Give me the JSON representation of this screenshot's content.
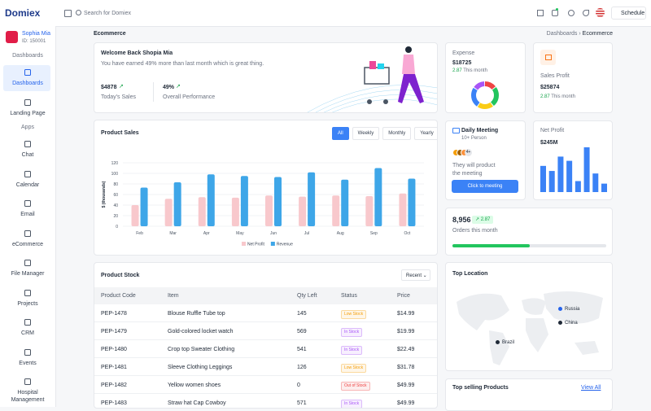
{
  "header": {
    "logo": "Domiex",
    "search": "Search for Domiex",
    "schedule": "Schedule"
  },
  "sidebar": {
    "user": {
      "name": "Sophia Mia",
      "id": "ID: 150001"
    },
    "groups": [
      {
        "title": "Dashboards",
        "items": [
          "Dashboards",
          "Landing Page"
        ]
      },
      {
        "title": "Apps",
        "items": [
          "Chat",
          "Calendar",
          "Email",
          "eCommerce",
          "File Manager",
          "Projects",
          "CRM",
          "Events",
          "Hospital Management"
        ]
      }
    ]
  },
  "breadcrumb": {
    "page": "Ecommerce",
    "trail": [
      "Dashboards",
      "Ecommerce"
    ]
  },
  "welcome": {
    "title": "Welcome Back Shopia Mia",
    "text": "You have earned 49% more than last month which is great thing.",
    "stats": [
      {
        "value": "$4878",
        "label": "Today's Sales"
      },
      {
        "value": "49%",
        "label": "Overall Performance"
      }
    ]
  },
  "expense": {
    "label": "Expense",
    "value": "$18725",
    "change": "2.87",
    "period": "This month",
    "donut": {
      "type": "donut",
      "values": [
        15,
        25,
        20,
        25,
        15
      ],
      "colors": [
        "#ef4444",
        "#22c55e",
        "#facc15",
        "#3b82f6",
        "#a855f7"
      ]
    }
  },
  "sales_profit": {
    "label": "Sales Profit",
    "value": "$25874",
    "change": "2.87",
    "period": "This month"
  },
  "meeting": {
    "title": "Daily Meeting",
    "people": "10+ Person",
    "more": "4+",
    "text": "They will product the meeting",
    "button": "Click to meeting"
  },
  "net_profit": {
    "label": "Net Profit",
    "value": "$245M",
    "bars": {
      "type": "bar",
      "values": [
        31,
        25,
        42,
        37,
        13,
        53,
        22,
        10
      ],
      "color": "#3b82f6"
    }
  },
  "orders": {
    "value": "8,956",
    "change": "2.87",
    "label": "Orders this month",
    "progress": 50
  },
  "product_sales": {
    "type": "bar",
    "title": "Product Sales",
    "tabs": [
      "All",
      "Weekly",
      "Monthly",
      "Yearly"
    ],
    "ylabel": "$ (thousands)",
    "ylim": [
      0,
      120
    ],
    "yticks": [
      0,
      20,
      40,
      60,
      80,
      100,
      120
    ],
    "categories": [
      "Feb",
      "Mar",
      "Apr",
      "May",
      "Jun",
      "Jul",
      "Aug",
      "Sep",
      "Oct"
    ],
    "series": [
      {
        "name": "Net Profit",
        "color": "#f8c8cc",
        "values": [
          40,
          52,
          55,
          54,
          58,
          56,
          58,
          57,
          62
        ]
      },
      {
        "name": "Revenue",
        "color": "#3ea6e8",
        "values": [
          73,
          83,
          98,
          95,
          93,
          102,
          88,
          110,
          90
        ]
      }
    ]
  },
  "product_stock": {
    "title": "Product Stock",
    "filter": "Recent",
    "columns": [
      "Product Code",
      "Item",
      "Qty Left",
      "Status",
      "Price"
    ],
    "rows": [
      [
        "PEP-1478",
        "Blouse Ruffle Tube top",
        145,
        "Low Stock",
        "$14.99"
      ],
      [
        "PEP-1479",
        "Gold-colored locket watch",
        569,
        "In Stock",
        "$19.99"
      ],
      [
        "PEP-1480",
        "Crop top Sweater Clothing",
        541,
        "In Stock",
        "$22.49"
      ],
      [
        "PEP-1481",
        "Sleeve Clothing Leggings",
        126,
        "Low Stock",
        "$31.78"
      ],
      [
        "PEP-1482",
        "Yellow women shoes",
        0,
        "Out of Stock",
        "$49.99"
      ],
      [
        "PEP-1483",
        "Straw hat Cap Cowboy",
        571,
        "In Stock",
        "$49.99"
      ]
    ],
    "status_colors": [
      "#f59e0b",
      "#a855f7",
      "#a855f7",
      "#f59e0b",
      "#ef4444",
      "#a855f7"
    ]
  },
  "top_location": {
    "title": "Top Location",
    "markers": [
      "Russia",
      "China",
      "Brazil"
    ]
  },
  "top_selling": {
    "title": "Top selling Products",
    "link": "View All"
  }
}
